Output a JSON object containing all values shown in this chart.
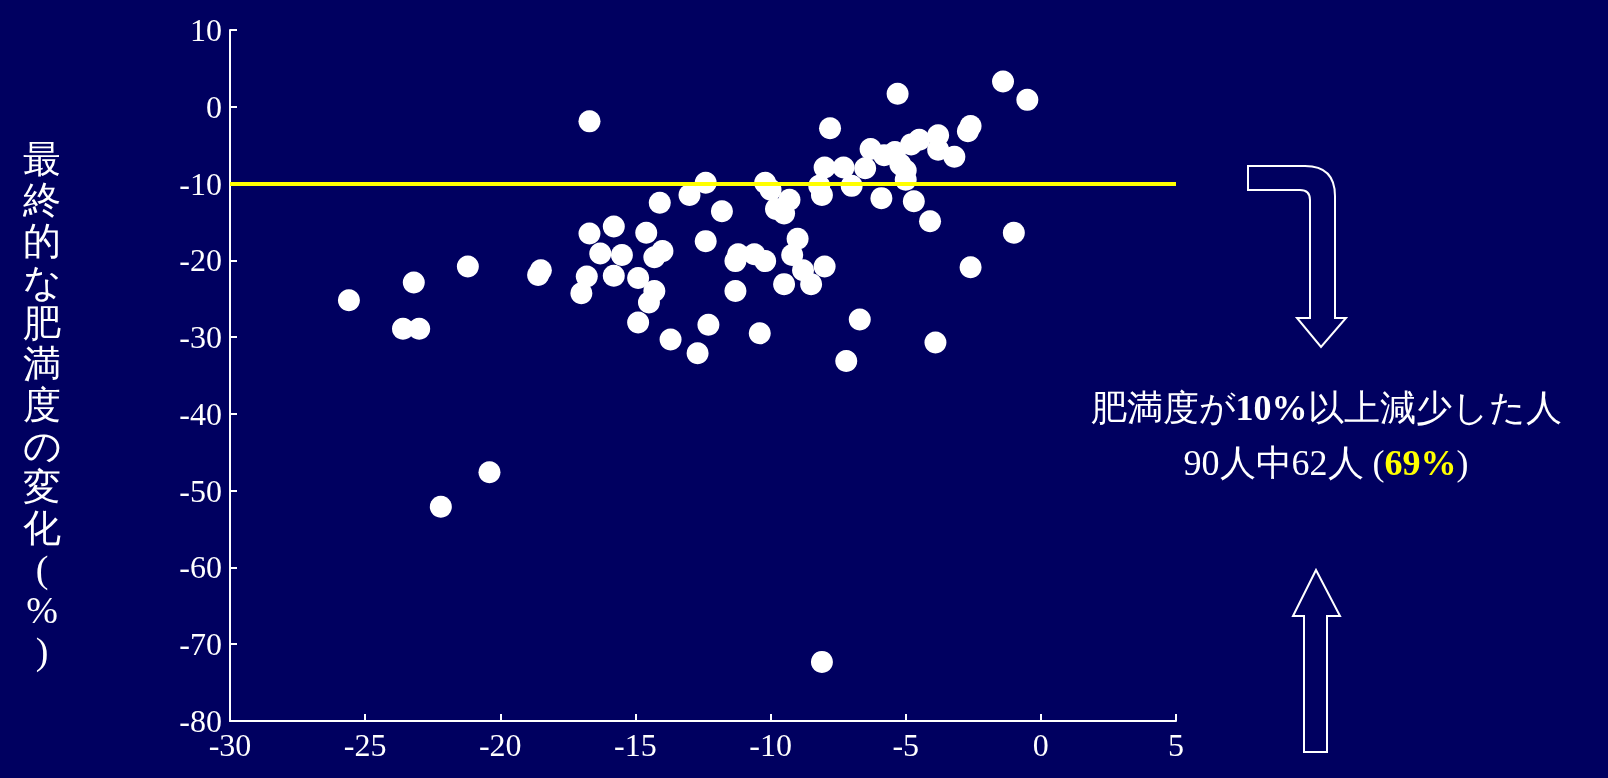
{
  "chart_data": {
    "type": "scatter",
    "ylabel": "最終的な肥満度の変化(%)",
    "x": [
      -25.6,
      -23.6,
      -23.0,
      -23.2,
      -22.2,
      -21.2,
      -20.4,
      -18.6,
      -18.5,
      -16.7,
      -16.7,
      -16.8,
      -17.0,
      -16.3,
      -15.8,
      -15.8,
      -15.5,
      -14.9,
      -14.9,
      -14.6,
      -14.3,
      -14.5,
      -14.3,
      -14.0,
      -14.1,
      -13.7,
      -13.0,
      -12.7,
      -12.4,
      -12.4,
      -12.3,
      -11.8,
      -11.3,
      -11.2,
      -11.3,
      -10.6,
      -10.4,
      -10.2,
      -10.2,
      -10.0,
      -9.8,
      -9.5,
      -9.3,
      -9.5,
      -9.2,
      -9.0,
      -8.8,
      -8.5,
      -8.0,
      -8.1,
      -7.8,
      -8.0,
      -8.2,
      -8.1,
      -7.3,
      -7.2,
      -7.0,
      -6.7,
      -6.5,
      -6.3,
      -5.9,
      -5.8,
      -5.4,
      -5.3,
      -5.2,
      -5.0,
      -5.0,
      -4.7,
      -4.8,
      -4.5,
      -4.1,
      -3.9,
      -3.8,
      -3.8,
      -3.2,
      -2.7,
      -2.6,
      -2.6,
      -1.4,
      -1.0,
      -0.5
    ],
    "values": [
      -25.2,
      -28.9,
      -28.9,
      -22.9,
      -52.1,
      -20.8,
      -47.6,
      -21.9,
      -21.3,
      -1.9,
      -16.5,
      -22.1,
      -24.3,
      -19.1,
      -15.6,
      -22.0,
      -19.3,
      -22.3,
      -28.1,
      -16.4,
      -24.0,
      -25.5,
      -19.6,
      -18.8,
      -12.5,
      -30.3,
      -11.5,
      -32.1,
      -17.5,
      -9.9,
      -28.4,
      -13.6,
      -20.1,
      -19.2,
      -24.0,
      -19.2,
      -29.5,
      -9.9,
      -20.1,
      -10.8,
      -13.3,
      -13.9,
      -12.1,
      -23.1,
      -19.3,
      -17.2,
      -21.3,
      -23.1,
      -20.8,
      -72.3,
      -2.8,
      -7.9,
      -10.3,
      -11.5,
      -7.9,
      -33.1,
      -10.3,
      -27.7,
      -8.0,
      -5.5,
      -11.9,
      -6.3,
      -5.9,
      1.7,
      -7.5,
      -8.3,
      -9.5,
      -12.3,
      -4.9,
      -4.3,
      -14.9,
      -30.7,
      -3.7,
      -5.6,
      -6.5,
      -3.2,
      -20.9,
      -2.5,
      3.3,
      -16.4,
      0.9
    ],
    "color": "#ffffff",
    "marker": "circle",
    "xlim": [
      -30,
      5
    ],
    "xticks": [
      -30,
      -25,
      -20,
      -15,
      -10,
      -5,
      0,
      5
    ],
    "ylim": [
      -80,
      10
    ],
    "yticks": [
      -80,
      -70,
      -60,
      -50,
      -40,
      -30,
      -20,
      -10,
      0,
      10
    ],
    "grid": false,
    "ref_lines": [
      {
        "axis": "y",
        "value": -10,
        "color": "#ffff00",
        "line_style": "solid"
      }
    ],
    "annotations": [
      "肥満度が10%以上減少した人",
      "90人中62人 (69%)"
    ]
  }
}
